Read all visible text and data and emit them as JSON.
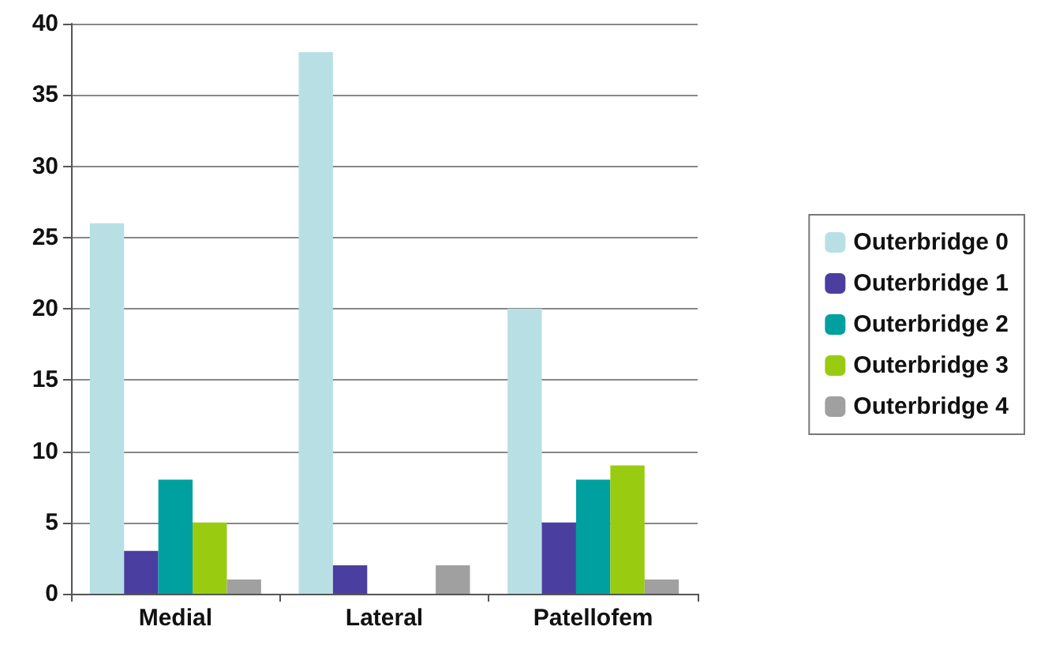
{
  "chart_data": {
    "type": "bar",
    "categories": [
      "Medial",
      "Lateral",
      "Patellofem"
    ],
    "series": [
      {
        "name": "Outerbridge 0",
        "color": "#b8e0e4",
        "values": [
          26,
          38,
          20
        ]
      },
      {
        "name": "Outerbridge 1",
        "color": "#4a3fa0",
        "values": [
          3,
          2,
          5
        ]
      },
      {
        "name": "Outerbridge 2",
        "color": "#00a0a0",
        "values": [
          8,
          0,
          8
        ]
      },
      {
        "name": "Outerbridge 3",
        "color": "#99cc11",
        "values": [
          5,
          0,
          9
        ]
      },
      {
        "name": "Outerbridge 4",
        "color": "#a0a0a0",
        "values": [
          1,
          2,
          1
        ]
      }
    ],
    "ylim": [
      0,
      40
    ],
    "yticks": [
      0,
      5,
      10,
      15,
      20,
      25,
      30,
      35,
      40
    ],
    "grid": "y",
    "legend": "right"
  }
}
